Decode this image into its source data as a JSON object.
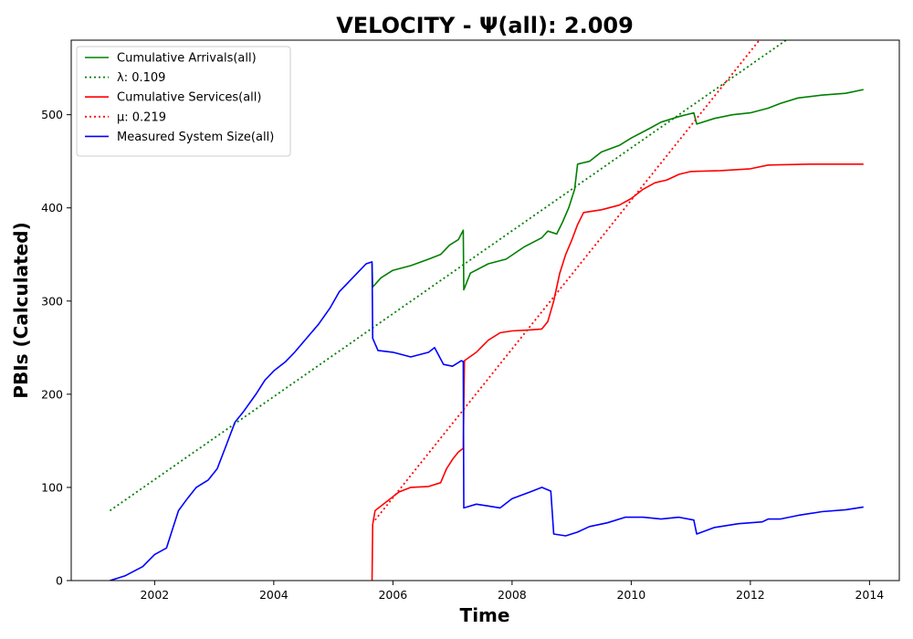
{
  "chart_data": {
    "type": "line",
    "title": "VELOCITY -  Ψ(all): 2.009",
    "xlabel": "Time",
    "ylabel": "PBIs (Calculated)",
    "xlim": [
      2000.6,
      2014.5
    ],
    "ylim": [
      0,
      580
    ],
    "xticks": [
      2002,
      2004,
      2006,
      2008,
      2010,
      2012,
      2014
    ],
    "yticks": [
      0,
      100,
      200,
      300,
      400,
      500
    ],
    "grid": false,
    "legend_position": "top-left",
    "series": [
      {
        "name": "Cumulative Arrivals(all)",
        "color": "#008000",
        "style": "solid",
        "points": [
          [
            2005.65,
            340
          ],
          [
            2005.66,
            315
          ],
          [
            2005.8,
            325
          ],
          [
            2006.0,
            333
          ],
          [
            2006.3,
            338
          ],
          [
            2006.6,
            345
          ],
          [
            2006.8,
            350
          ],
          [
            2006.95,
            360
          ],
          [
            2007.1,
            366
          ],
          [
            2007.18,
            376
          ],
          [
            2007.19,
            312
          ],
          [
            2007.3,
            330
          ],
          [
            2007.6,
            340
          ],
          [
            2007.9,
            345
          ],
          [
            2008.2,
            358
          ],
          [
            2008.5,
            368
          ],
          [
            2008.6,
            375
          ],
          [
            2008.75,
            372
          ],
          [
            2008.85,
            385
          ],
          [
            2008.95,
            400
          ],
          [
            2009.05,
            420
          ],
          [
            2009.1,
            447
          ],
          [
            2009.3,
            450
          ],
          [
            2009.5,
            460
          ],
          [
            2009.8,
            467
          ],
          [
            2010.0,
            475
          ],
          [
            2010.3,
            485
          ],
          [
            2010.5,
            492
          ],
          [
            2010.8,
            498
          ],
          [
            2011.05,
            502
          ],
          [
            2011.1,
            490
          ],
          [
            2011.4,
            496
          ],
          [
            2011.7,
            500
          ],
          [
            2012.0,
            502
          ],
          [
            2012.3,
            507
          ],
          [
            2012.5,
            512
          ],
          [
            2012.8,
            518
          ],
          [
            2013.2,
            521
          ],
          [
            2013.6,
            523
          ],
          [
            2013.9,
            527
          ]
        ]
      },
      {
        "name": "λ: 0.109",
        "color": "#008000",
        "style": "dotted",
        "points": [
          [
            2001.25,
            75
          ],
          [
            2012.6,
            580
          ]
        ]
      },
      {
        "name": "Cumulative Services(all)",
        "color": "#ff0000",
        "style": "solid",
        "points": [
          [
            2005.65,
            0
          ],
          [
            2005.66,
            60
          ],
          [
            2005.7,
            75
          ],
          [
            2005.9,
            85
          ],
          [
            2006.1,
            95
          ],
          [
            2006.3,
            100
          ],
          [
            2006.6,
            101
          ],
          [
            2006.8,
            105
          ],
          [
            2006.9,
            120
          ],
          [
            2007.0,
            130
          ],
          [
            2007.1,
            138
          ],
          [
            2007.18,
            142
          ],
          [
            2007.2,
            236
          ],
          [
            2007.4,
            245
          ],
          [
            2007.6,
            258
          ],
          [
            2007.8,
            266
          ],
          [
            2008.0,
            268
          ],
          [
            2008.3,
            269
          ],
          [
            2008.5,
            270
          ],
          [
            2008.6,
            278
          ],
          [
            2008.7,
            300
          ],
          [
            2008.8,
            330
          ],
          [
            2008.9,
            350
          ],
          [
            2009.0,
            365
          ],
          [
            2009.1,
            382
          ],
          [
            2009.2,
            395
          ],
          [
            2009.5,
            398
          ],
          [
            2009.8,
            403
          ],
          [
            2010.0,
            410
          ],
          [
            2010.2,
            420
          ],
          [
            2010.4,
            427
          ],
          [
            2010.6,
            430
          ],
          [
            2010.8,
            436
          ],
          [
            2011.0,
            439
          ],
          [
            2011.5,
            440
          ],
          [
            2012.0,
            442
          ],
          [
            2012.3,
            446
          ],
          [
            2013.0,
            447
          ],
          [
            2013.9,
            447
          ]
        ]
      },
      {
        "name": "μ: 0.219",
        "color": "#ff0000",
        "style": "dotted",
        "points": [
          [
            2005.7,
            65
          ],
          [
            2012.15,
            580
          ]
        ]
      },
      {
        "name": "Measured System Size(all)",
        "color": "#0000ff",
        "style": "solid",
        "points": [
          [
            2001.25,
            0
          ],
          [
            2001.5,
            5
          ],
          [
            2001.8,
            15
          ],
          [
            2002.0,
            28
          ],
          [
            2002.2,
            35
          ],
          [
            2002.3,
            55
          ],
          [
            2002.4,
            75
          ],
          [
            2002.55,
            88
          ],
          [
            2002.7,
            100
          ],
          [
            2002.9,
            108
          ],
          [
            2003.05,
            120
          ],
          [
            2003.2,
            145
          ],
          [
            2003.35,
            170
          ],
          [
            2003.5,
            182
          ],
          [
            2003.7,
            200
          ],
          [
            2003.85,
            215
          ],
          [
            2004.0,
            225
          ],
          [
            2004.2,
            235
          ],
          [
            2004.35,
            245
          ],
          [
            2004.55,
            260
          ],
          [
            2004.75,
            275
          ],
          [
            2004.95,
            293
          ],
          [
            2005.1,
            310
          ],
          [
            2005.25,
            320
          ],
          [
            2005.4,
            330
          ],
          [
            2005.55,
            340
          ],
          [
            2005.65,
            342
          ],
          [
            2005.66,
            260
          ],
          [
            2005.75,
            247
          ],
          [
            2006.0,
            245
          ],
          [
            2006.3,
            240
          ],
          [
            2006.6,
            245
          ],
          [
            2006.7,
            250
          ],
          [
            2006.85,
            232
          ],
          [
            2007.0,
            230
          ],
          [
            2007.15,
            236
          ],
          [
            2007.18,
            235
          ],
          [
            2007.19,
            78
          ],
          [
            2007.4,
            82
          ],
          [
            2007.6,
            80
          ],
          [
            2007.8,
            78
          ],
          [
            2008.0,
            88
          ],
          [
            2008.3,
            95
          ],
          [
            2008.5,
            100
          ],
          [
            2008.65,
            96
          ],
          [
            2008.7,
            50
          ],
          [
            2008.9,
            48
          ],
          [
            2009.1,
            52
          ],
          [
            2009.3,
            58
          ],
          [
            2009.6,
            62
          ],
          [
            2009.9,
            68
          ],
          [
            2010.2,
            68
          ],
          [
            2010.5,
            66
          ],
          [
            2010.8,
            68
          ],
          [
            2011.05,
            65
          ],
          [
            2011.1,
            50
          ],
          [
            2011.4,
            57
          ],
          [
            2011.8,
            61
          ],
          [
            2012.2,
            63
          ],
          [
            2012.3,
            66
          ],
          [
            2012.5,
            66
          ],
          [
            2012.8,
            70
          ],
          [
            2013.2,
            74
          ],
          [
            2013.6,
            76
          ],
          [
            2013.9,
            79
          ]
        ]
      }
    ]
  }
}
